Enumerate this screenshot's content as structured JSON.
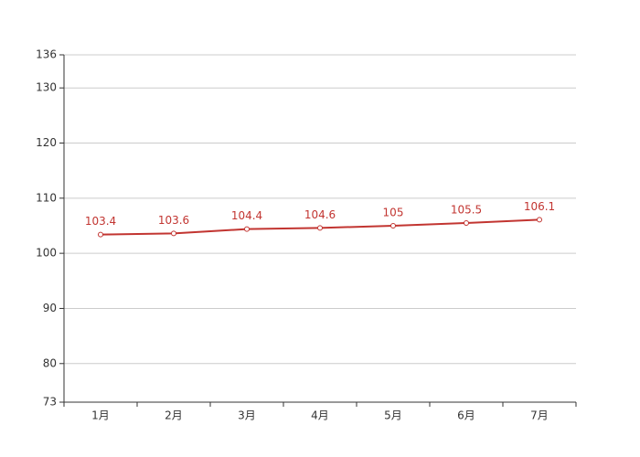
{
  "chart_data": {
    "type": "line",
    "categories": [
      "1月",
      "2月",
      "3月",
      "4月",
      "5月",
      "6月",
      "7月"
    ],
    "values": [
      103.4,
      103.6,
      104.4,
      104.6,
      105,
      105.5,
      106.1
    ],
    "color": "#c23531",
    "ylim": [
      73,
      136
    ],
    "yticks": [
      73,
      80,
      90,
      100,
      110,
      120,
      130,
      136
    ],
    "grid": true
  }
}
